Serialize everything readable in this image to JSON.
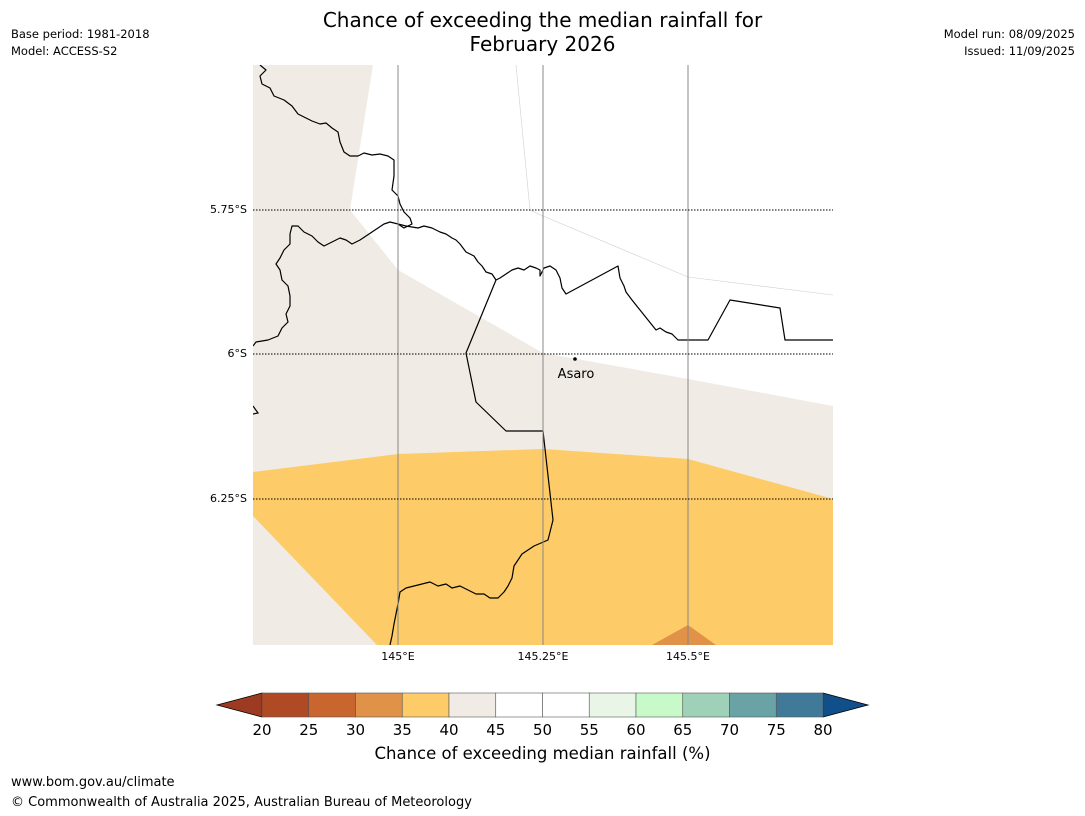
{
  "title": {
    "line1": "Chance of exceeding the median rainfall for",
    "line2": "February 2026"
  },
  "meta_left": {
    "base_period": "Base period: 1981-2018",
    "model": "Model: ACCESS-S2"
  },
  "meta_right": {
    "model_run": "Model run: 08/09/2025",
    "issued": "Issued: 11/09/2025"
  },
  "map": {
    "lat_labels": [
      "5.75°S",
      "6°S",
      "6.25°S"
    ],
    "lon_labels": [
      "145°E",
      "145.25°E",
      "145.5°E"
    ],
    "place": {
      "name": "Asaro"
    }
  },
  "colorbar": {
    "label": "Chance of exceeding median rainfall (%)",
    "ticks": [
      "20",
      "25",
      "30",
      "35",
      "40",
      "45",
      "50",
      "55",
      "60",
      "65",
      "70",
      "75",
      "80"
    ],
    "under_color": "#9c3a22",
    "over_color": "#114f8a",
    "colors": [
      "#b04a25",
      "#c9652f",
      "#e09248",
      "#fdcb68",
      "#f0ebe5",
      "#ffffff",
      "#ffffff",
      "#e9f6e7",
      "#c8f9c8",
      "#9fd0b8",
      "#6aa3a5",
      "#417a98"
    ]
  },
  "fill_colors": {
    "cat_40_45": "#f0ebe5",
    "cat_35_40": "#fdcb68",
    "cat_30_35": "#e09248"
  },
  "footer": {
    "url": "www.bom.gov.au/climate",
    "copyright": "© Commonwealth of Australia 2025, Australian Bureau of Meteorology"
  }
}
